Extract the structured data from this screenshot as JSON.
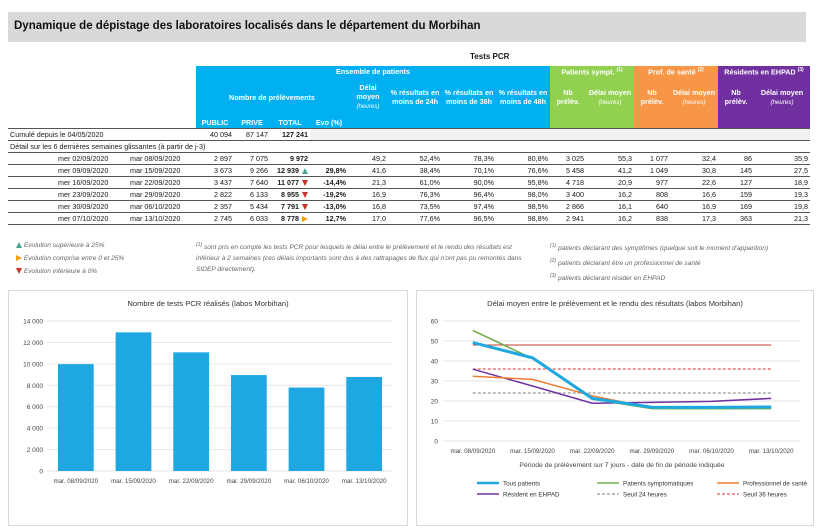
{
  "title": "Dynamique de dépistage des laboratoires localisés dans le département du Morbihan",
  "table": {
    "section": "Tests PCR",
    "groups": {
      "ensemble": "Ensemble de patients",
      "sympt": "Patients sympt.",
      "sympt_note": "(1)",
      "prof": "Prof. de santé",
      "prof_note": "(2)",
      "ehpad": "Résidents en EHPAD",
      "ehpad_note": "(3)"
    },
    "headers": {
      "nb_prelev": "Nombre de prélèvements",
      "public": "PUBLIC",
      "prive": "PRIVE",
      "total": "TOTAL",
      "evo": "Evo (%)",
      "delai": "Délai moyen",
      "heures": "(heures)",
      "pct24": "% résultats en moins de 24h",
      "pct36": "% résultats en moins de 36h",
      "pct48": "% résultats en moins de 48h",
      "nb_short": "Nb prélèv.",
      "delai_short": "Délai moyen"
    },
    "cumul": {
      "label": "Cumulé depuis le 04/05/2020",
      "public": "40 094",
      "prive": "87 147",
      "total": "127 241"
    },
    "detail_label": "Détail sur les 6 dernières semaines glissantes (à partir de j-3)",
    "rows": [
      {
        "d1": "mer 02/09/2020",
        "d2": "mar 08/09/2020",
        "pub": "2 897",
        "priv": "7 075",
        "tot": "9 972",
        "evo": "",
        "trend": "none",
        "delai": "49,2",
        "p24": "52,4%",
        "p36": "78,3%",
        "p48": "80,8%",
        "sn": "3 025",
        "sd": "55,3",
        "pn": "1 077",
        "pd": "32,4",
        "en": "86",
        "ed": "35,9"
      },
      {
        "d1": "mer 09/09/2020",
        "d2": "mar 15/09/2020",
        "pub": "3 673",
        "priv": "9 266",
        "tot": "12 939",
        "evo": "29,8%",
        "trend": "up",
        "delai": "41,6",
        "p24": "38,4%",
        "p36": "70,1%",
        "p48": "76,6%",
        "sn": "5 458",
        "sd": "41,2",
        "pn": "1 049",
        "pd": "30,8",
        "en": "145",
        "ed": "27,5"
      },
      {
        "d1": "mer 16/09/2020",
        "d2": "mar 22/09/2020",
        "pub": "3 437",
        "priv": "7 640",
        "tot": "11 077",
        "evo": "-14,4%",
        "trend": "down",
        "delai": "21,3",
        "p24": "61,0%",
        "p36": "90,0%",
        "p48": "95,8%",
        "sn": "4 718",
        "sd": "20,9",
        "pn": "977",
        "pd": "22,6",
        "en": "127",
        "ed": "18,9"
      },
      {
        "d1": "mer 23/09/2020",
        "d2": "mar 29/09/2020",
        "pub": "2 822",
        "priv": "6 133",
        "tot": "8 955",
        "evo": "-19,2%",
        "trend": "down",
        "delai": "16,9",
        "p24": "76,3%",
        "p36": "96,4%",
        "p48": "98,0%",
        "sn": "3 400",
        "sd": "16,2",
        "pn": "808",
        "pd": "16,6",
        "en": "159",
        "ed": "19,3"
      },
      {
        "d1": "mer 30/09/2020",
        "d2": "mar 06/10/2020",
        "pub": "2 357",
        "priv": "5 434",
        "tot": "7 791",
        "evo": "-13,0%",
        "trend": "down",
        "delai": "16,8",
        "p24": "73,5%",
        "p36": "97,4%",
        "p48": "98,5%",
        "sn": "2 866",
        "sd": "16,1",
        "pn": "640",
        "pd": "16,9",
        "en": "169",
        "ed": "19,8"
      },
      {
        "d1": "mer 07/10/2020",
        "d2": "mar 13/10/2020",
        "pub": "2 745",
        "priv": "6 033",
        "tot": "8 778",
        "evo": "12,7%",
        "trend": "right",
        "delai": "17,0",
        "p24": "77,6%",
        "p36": "96,5%",
        "p48": "98,8%",
        "sn": "2 941",
        "sd": "16,2",
        "pn": "838",
        "pd": "17,3",
        "en": "363",
        "ed": "21,3"
      }
    ]
  },
  "legend": {
    "up": "Evolution supérieure à 25%",
    "mid": "Evolution comprise entre 0 et 25%",
    "down": "Evolution inférieure à 0%"
  },
  "notes": {
    "n1": "sont pris en compte les tests PCR pour lesquels le délai entre le prélèvement et le rendu des résultats est inférieur à 2 semaines (ces délais importants sont dus à des rattrapages de flux qui n'ont pas pu remontés dans SIDEP directement).",
    "s1": "patients déclarant des symptômes (quelque soit le moment d'apparition)",
    "s2": "patients déclarant être un professionnel de santé",
    "s3": "patients déclarant résider en EHPAD"
  },
  "chart_data": [
    {
      "type": "bar",
      "title": "Nombre de tests PCR réalisés (labos Morbihan)",
      "categories": [
        "mar. 08/09/2020",
        "mar. 15/09/2020",
        "mar. 22/09/2020",
        "mar. 29/09/2020",
        "mar. 06/10/2020",
        "mar. 13/10/2020"
      ],
      "values": [
        9972,
        12939,
        11077,
        8955,
        7791,
        8778
      ],
      "ylim": [
        0,
        14000
      ],
      "yticks": [
        "0",
        "2 000",
        "4 000",
        "6 000",
        "8 000",
        "10 000",
        "12 000",
        "14 000"
      ],
      "color": "#1ea7e1",
      "grid": true
    },
    {
      "type": "line",
      "title": "Délai moyen entre le prélèvement et le rendu des résultats (labos Morbihan)",
      "xlabel": "Période de prélèvement sur 7 jours - date de fin de période indiquée",
      "categories": [
        "mar. 08/09/2020",
        "mar. 15/09/2020",
        "mar. 22/09/2020",
        "mar. 29/09/2020",
        "mar. 06/10/2020",
        "mar. 13/10/2020"
      ],
      "ylim": [
        0,
        60
      ],
      "yticks": [
        "0",
        "10",
        "20",
        "30",
        "40",
        "50",
        "60"
      ],
      "series": [
        {
          "name": "Tous patients",
          "values": [
            49.2,
            41.6,
            21.3,
            16.9,
            16.8,
            17.0
          ],
          "color": "#1ea7e1",
          "width": 3,
          "dash": ""
        },
        {
          "name": "Patients symptomatiques",
          "values": [
            55.3,
            41.2,
            20.9,
            16.2,
            16.1,
            16.2
          ],
          "color": "#70ad47",
          "width": 1.5,
          "dash": ""
        },
        {
          "name": "Professionnel de santé",
          "values": [
            32.4,
            30.8,
            22.6,
            16.6,
            16.9,
            17.3
          ],
          "color": "#ed7d31",
          "width": 1.5,
          "dash": ""
        },
        {
          "name": "Résident en EHPAD",
          "values": [
            35.9,
            27.5,
            18.9,
            19.3,
            19.8,
            21.3
          ],
          "color": "#7030a0",
          "width": 1.5,
          "dash": ""
        },
        {
          "name": "Seuil 24 heures",
          "values": [
            24,
            24,
            24,
            24,
            24,
            24
          ],
          "color": "#7f7f7f",
          "width": 1,
          "dash": "3,2"
        },
        {
          "name": "Seuil 36 heures",
          "values": [
            36,
            36,
            36,
            36,
            36,
            36
          ],
          "color": "#e03030",
          "width": 1,
          "dash": "3,2"
        },
        {
          "name": "",
          "values": [
            48,
            48,
            48,
            48,
            48,
            48
          ],
          "color": "#c0392b",
          "width": 1,
          "dash": ""
        }
      ],
      "legend_position": "bottom",
      "grid": true
    }
  ]
}
